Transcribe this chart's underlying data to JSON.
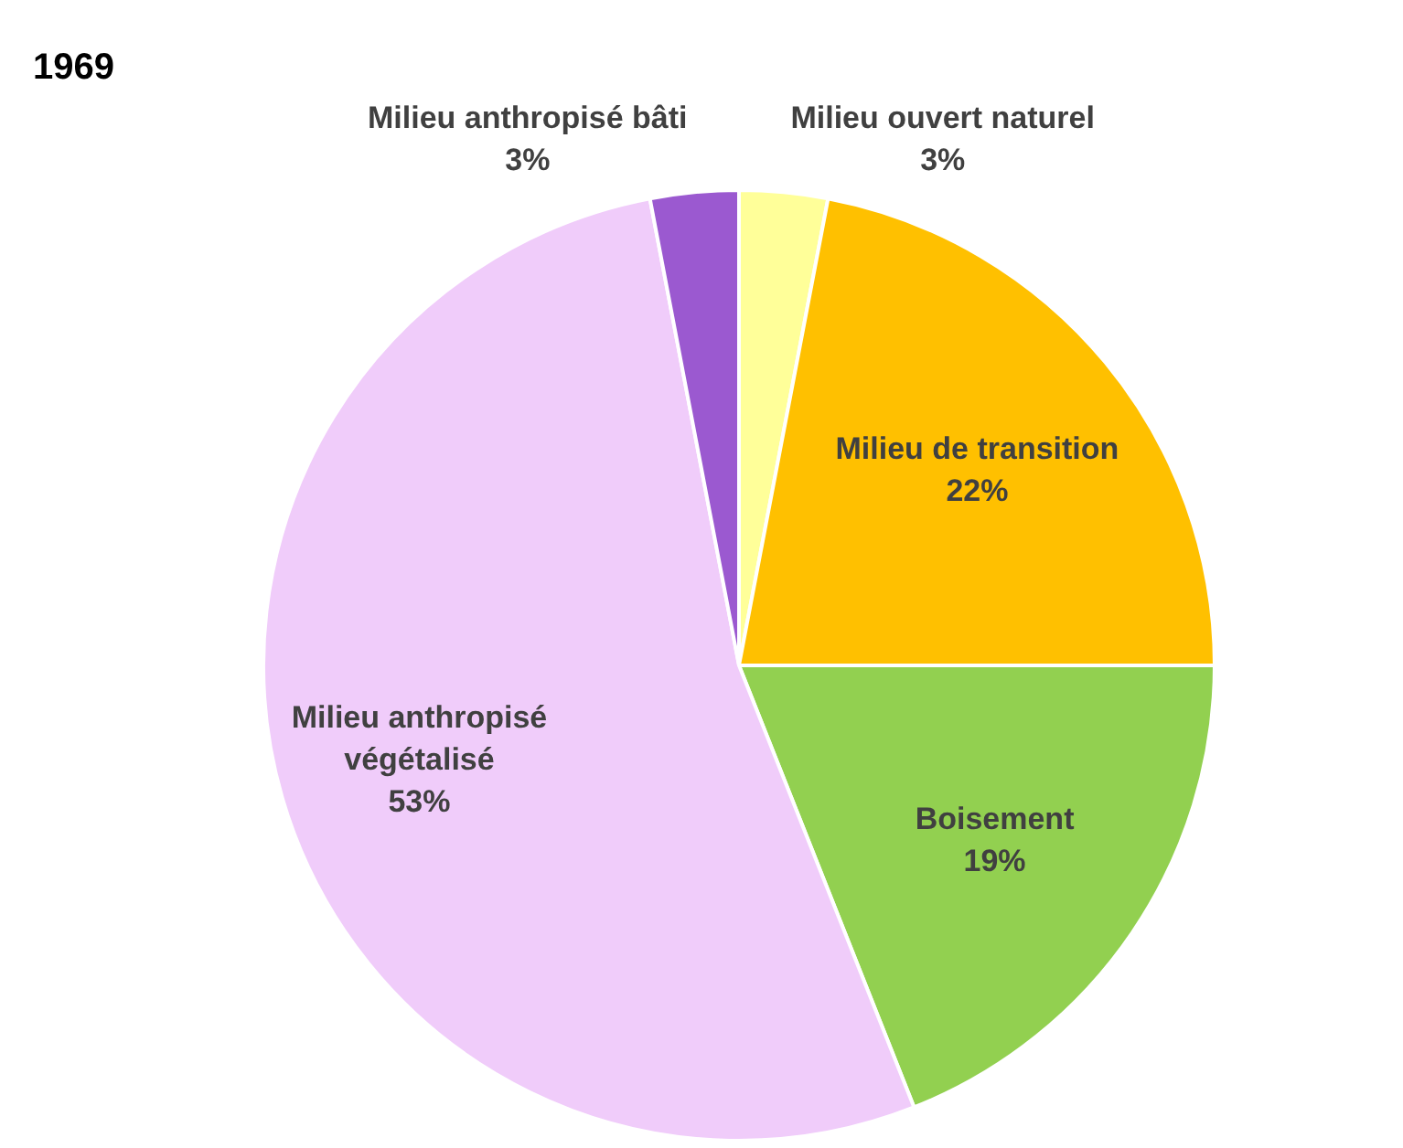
{
  "chart_data": {
    "type": "pie",
    "title": "1969",
    "categories": [
      "Milieu ouvert naturel",
      "Milieu de transition",
      "Boisement",
      "Milieu anthropisé végétalisé",
      "Milieu anthropisé bâti"
    ],
    "values": [
      3,
      22,
      19,
      53,
      3
    ],
    "value_labels": [
      "3%",
      "22%",
      "19%",
      "53%",
      "3%"
    ],
    "colors": [
      "#ffff99",
      "#ffc000",
      "#92d050",
      "#f0ccfa",
      "#9b59d0"
    ],
    "legend": false
  }
}
